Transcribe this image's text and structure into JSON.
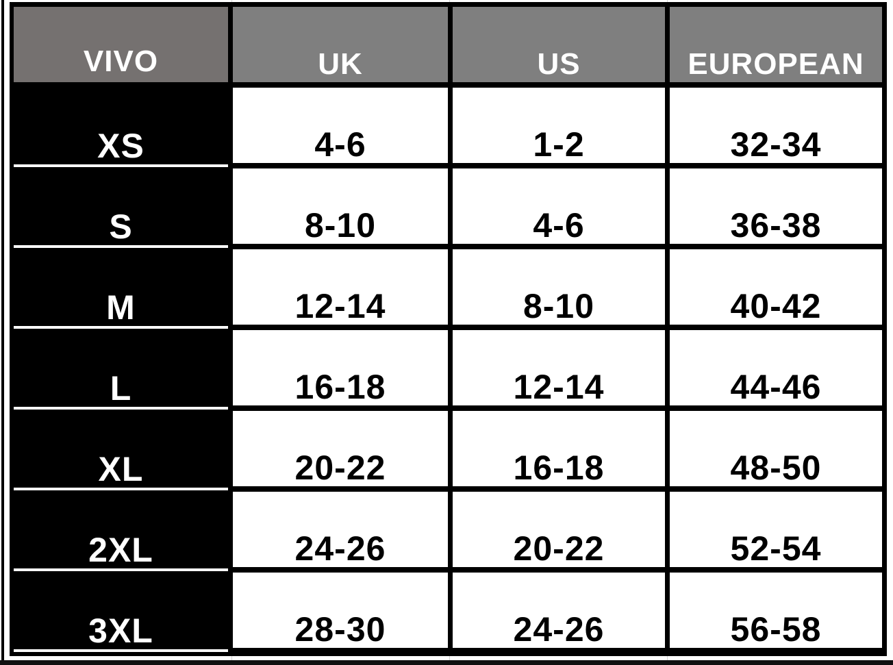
{
  "table": {
    "headers": [
      "VIVO",
      "UK",
      "US",
      "EUROPEAN"
    ],
    "rows": [
      {
        "size": "XS",
        "uk": "4-6",
        "us": "1-2",
        "eu": "32-34"
      },
      {
        "size": "S",
        "uk": "8-10",
        "us": "4-6",
        "eu": "36-38"
      },
      {
        "size": "M",
        "uk": "12-14",
        "us": "8-10",
        "eu": "40-42"
      },
      {
        "size": "L",
        "uk": "16-18",
        "us": "12-14",
        "eu": "44-46"
      },
      {
        "size": "XL",
        "uk": "20-22",
        "us": "16-18",
        "eu": "48-50"
      },
      {
        "size": "2XL",
        "uk": "24-26",
        "us": "20-22",
        "eu": "52-54"
      },
      {
        "size": "3XL",
        "uk": "28-30",
        "us": "24-26",
        "eu": "56-58"
      }
    ]
  },
  "colors": {
    "header_bg": "#7f7f7f",
    "brand_header_bg": "#757170",
    "size_col_bg": "#000000"
  }
}
